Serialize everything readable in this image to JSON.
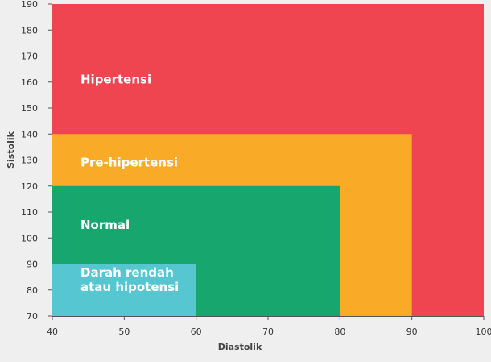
{
  "chart_data": {
    "type": "area",
    "title": "",
    "xlabel": "Diastolik",
    "ylabel": "Sistolik",
    "xlim": [
      40,
      100
    ],
    "ylim": [
      70,
      190
    ],
    "xticks": [
      40,
      50,
      60,
      70,
      80,
      90,
      100
    ],
    "yticks": [
      70,
      80,
      90,
      100,
      110,
      120,
      130,
      140,
      150,
      160,
      170,
      180,
      190
    ],
    "regions": [
      {
        "name": "Hipertensi",
        "label_lines": [
          "Hipertensi"
        ],
        "x_max": 100,
        "y_max": 190,
        "color": "#ef4550",
        "label_y": 161
      },
      {
        "name": "Pre-hipertensi",
        "label_lines": [
          "Pre-hipertensi"
        ],
        "x_max": 90,
        "y_max": 140,
        "color": "#f9ab27",
        "label_y": 129
      },
      {
        "name": "Normal",
        "label_lines": [
          "Normal"
        ],
        "x_max": 80,
        "y_max": 120,
        "color": "#17a66e",
        "label_y": 105
      },
      {
        "name": "Darah rendah atau hipotensi",
        "label_lines": [
          "Darah rendah",
          "atau hipotensi"
        ],
        "x_max": 60,
        "y_max": 90,
        "color": "#56c6d0",
        "label_y": 84
      }
    ]
  }
}
